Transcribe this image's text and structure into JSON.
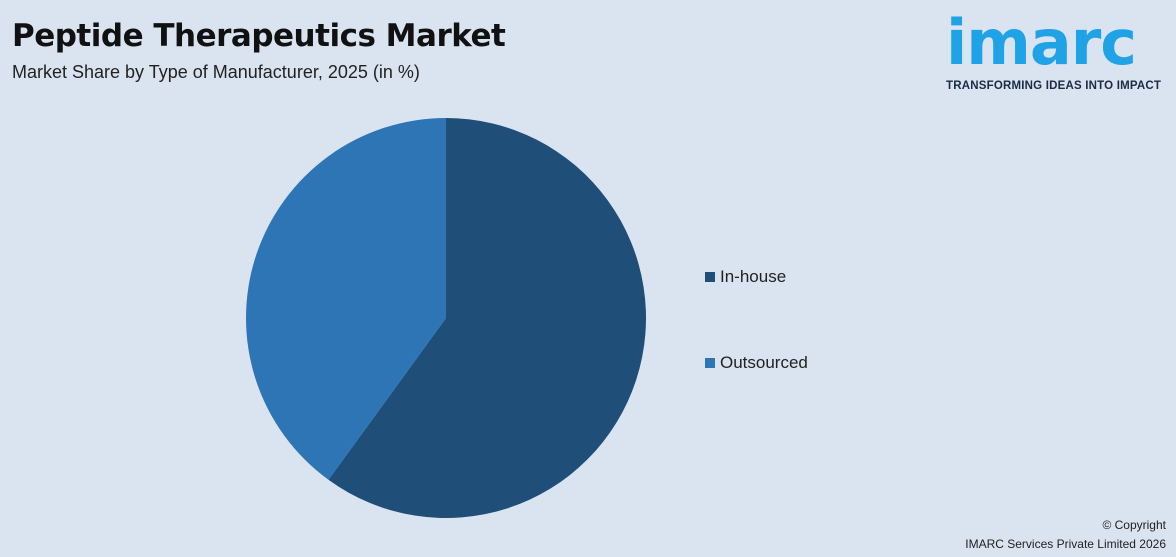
{
  "header": {
    "title": "Peptide Therapeutics Market",
    "subtitle": "Market Share by Type of Manufacturer, 2025 (in %)"
  },
  "logo": {
    "word": "imarc",
    "tagline": "TRANSFORMING IDEAS INTO IMPACT"
  },
  "chart_data": {
    "type": "pie",
    "title": "Peptide Therapeutics Market",
    "subtitle": "Market Share by Type of Manufacturer, 2025 (in %)",
    "categories": [
      "In-house",
      "Outsourced"
    ],
    "values": [
      60,
      40
    ],
    "colors": [
      "#1f4e79",
      "#2e75b6"
    ],
    "legend_position": "right"
  },
  "footer": {
    "copyright": "© Copyright",
    "company": "IMARC Services Private Limited 2026"
  }
}
